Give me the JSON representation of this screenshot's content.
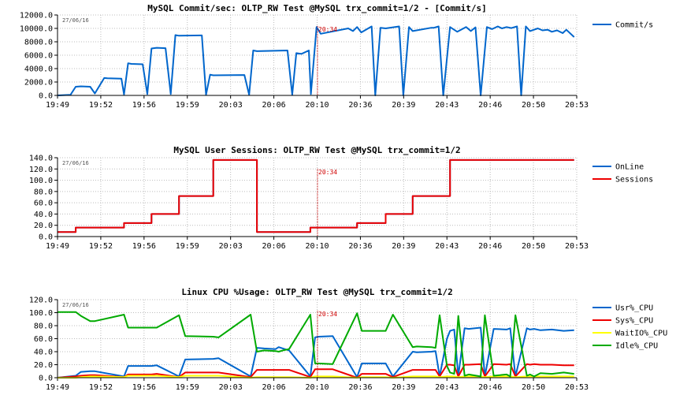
{
  "chart_data": [
    {
      "type": "line",
      "title": "MySQL Commit/sec: OLTP_RW Test @MySQL trx_commit=1/2 - [Commit/s]",
      "date_label": "27/06/16",
      "marker_label": "20:34",
      "x_tick_labels": [
        "19:49",
        "19:52",
        "19:56",
        "19:59",
        "20:03",
        "20:06",
        "20:10",
        "20:36",
        "20:39",
        "20:43",
        "20:46",
        "20:50",
        "20:53"
      ],
      "y_tick_labels": [
        "0.0",
        "2000.0",
        "4000.0",
        "6000.0",
        "8000.0",
        "10000.0",
        "12000.0"
      ],
      "ylim": [
        0,
        12000
      ],
      "grid": true,
      "legend_position": "right",
      "x": [
        0,
        2.5,
        3.5,
        4.5,
        6.3,
        7.2,
        9,
        9.6,
        12.3,
        12.8,
        13.6,
        14.2,
        16.4,
        17.3,
        18.1,
        19.1,
        20.8,
        21.8,
        22.7,
        23.4,
        27.8,
        28.6,
        29.4,
        30,
        36,
        36.9,
        37.7,
        38.4,
        44.3,
        45.2,
        46,
        47,
        48.4,
        48.8,
        49.9,
        50.7,
        56,
        56.9,
        57.7,
        58.5,
        60.5,
        61.2,
        62.2,
        63.2,
        65.8,
        66.6,
        67.7,
        68.4,
        72,
        72.5,
        73.4,
        74.3,
        75.6,
        77,
        78.7,
        79.6,
        80.5,
        81.5,
        82.7,
        83.7,
        84.8,
        85.6,
        86.5,
        87.4,
        88.5,
        89.3,
        90.2,
        91,
        92.5,
        93.4,
        94.4,
        95.2,
        96.2,
        97.3,
        98,
        99.5
      ],
      "series": [
        {
          "name": "Commit/s",
          "color": "#0066cc",
          "values": [
            0,
            100,
            1300,
            1350,
            1300,
            300,
            2600,
            2550,
            2500,
            150,
            4800,
            4700,
            4650,
            200,
            7000,
            7100,
            7050,
            200,
            9000,
            8900,
            8950,
            100,
            3100,
            3000,
            3050,
            100,
            6700,
            6600,
            6700,
            100,
            6300,
            6200,
            6700,
            200,
            10200,
            9200,
            10000,
            9600,
            10200,
            9400,
            10300,
            0,
            10100,
            10000,
            10300,
            0,
            10200,
            9600,
            10100,
            10100,
            10300,
            0,
            10200,
            9500,
            10200,
            9600,
            10150,
            0,
            10200,
            9900,
            10300,
            10000,
            10200,
            10050,
            10300,
            0,
            10300,
            9600,
            10000,
            9700,
            9800,
            9500,
            9700,
            9300,
            9800,
            8700
          ]
        }
      ]
    },
    {
      "type": "line",
      "title": "MySQL User Sessions: OLTP_RW Test @MySQL trx_commit=1/2",
      "date_label": "27/06/16",
      "marker_label": "20:34",
      "x_tick_labels": [
        "19:49",
        "19:52",
        "19:56",
        "19:59",
        "20:03",
        "20:06",
        "20:10",
        "20:36",
        "20:39",
        "20:43",
        "20:46",
        "20:50",
        "20:53"
      ],
      "y_tick_labels": [
        "0.0",
        "20.0",
        "40.0",
        "60.0",
        "80.0",
        "100.0",
        "120.0",
        "140.0"
      ],
      "ylim": [
        0,
        140
      ],
      "grid": true,
      "legend_position": "right",
      "x": [
        0,
        3.5,
        3.5,
        12.8,
        12.8,
        18.1,
        18.1,
        23.4,
        23.4,
        30,
        30,
        38.4,
        38.4,
        48.7,
        48.7,
        50.2,
        50.2,
        57.7,
        57.7,
        63.2,
        63.2,
        68.4,
        68.4,
        75.6,
        75.6,
        78.7,
        78.7,
        81.5,
        81.5,
        91,
        91,
        99.5
      ],
      "series": [
        {
          "name": "OnLine",
          "color": "#0066cc",
          "values": [
            8,
            8,
            16,
            16,
            24,
            24,
            40,
            40,
            72,
            72,
            136,
            136,
            8,
            8,
            16,
            16,
            16,
            16,
            24,
            24,
            40,
            40,
            72,
            72,
            136,
            136,
            136,
            136,
            136,
            136,
            136,
            136
          ]
        },
        {
          "name": "Sessions",
          "color": "#ee0000",
          "values": [
            8,
            8,
            16,
            16,
            24,
            24,
            40,
            40,
            72,
            72,
            136,
            136,
            8,
            8,
            16,
            16,
            16,
            16,
            24,
            24,
            40,
            40,
            72,
            72,
            136,
            136,
            136,
            136,
            136,
            136,
            136,
            136
          ]
        }
      ]
    },
    {
      "type": "line",
      "title": "Linux CPU %Usage: OLTP_RW Test @MySQL trx_commit=1/2",
      "date_label": "27/06/16",
      "marker_label": "20:34",
      "x_tick_labels": [
        "19:49",
        "19:52",
        "19:56",
        "19:59",
        "20:03",
        "20:06",
        "20:10",
        "20:36",
        "20:39",
        "20:43",
        "20:46",
        "20:50",
        "20:53"
      ],
      "y_tick_labels": [
        "0.0",
        "20.0",
        "40.0",
        "60.0",
        "80.0",
        "100.0",
        "120.0"
      ],
      "ylim": [
        0,
        120
      ],
      "grid": true,
      "legend_position": "right",
      "x": [
        0,
        3.5,
        4.5,
        6.3,
        7.2,
        12.8,
        13.6,
        18.1,
        19.1,
        23.4,
        24.6,
        30,
        31,
        37.2,
        38.4,
        39.8,
        42,
        42.6,
        43.4,
        44.6,
        48.7,
        49.6,
        50.2,
        53,
        57.7,
        58.6,
        63.2,
        64.6,
        68.4,
        69.2,
        72,
        72.8,
        73.6,
        75,
        75.6,
        76.4,
        77.2,
        78.4,
        79.2,
        81.5,
        82.3,
        84,
        86.5,
        87.2,
        88.2,
        90.4,
        91,
        91.8,
        93,
        95.2,
        97.5,
        99.5
      ],
      "series": [
        {
          "name": "Usr%_CPU",
          "color": "#0066cc",
          "values": [
            0,
            3,
            9,
            10,
            10,
            2,
            18,
            18,
            19,
            2,
            28,
            29,
            30,
            2,
            46,
            45,
            44,
            47,
            45,
            42,
            2,
            62,
            63,
            64,
            1,
            22,
            22,
            2,
            40,
            39,
            40,
            41,
            2,
            60,
            72,
            74,
            3,
            76,
            75,
            77,
            2,
            75,
            74,
            76,
            2,
            76,
            74,
            75,
            73,
            74,
            72,
            73
          ]
        },
        {
          "name": "Sys%_CPU",
          "color": "#ee0000",
          "values": [
            0,
            2,
            3,
            4,
            4,
            1,
            5,
            5,
            6,
            1,
            8,
            8,
            8,
            1,
            12,
            12,
            12,
            12,
            12,
            12,
            1,
            13,
            13,
            13,
            0,
            6,
            6,
            1,
            12,
            12,
            12,
            12,
            2,
            20,
            20,
            19,
            2,
            20,
            20,
            21,
            2,
            21,
            20,
            21,
            2,
            21,
            20,
            21,
            20,
            20,
            19,
            19
          ]
        },
        {
          "name": "WaitIO%_CPU",
          "color": "#ffff00",
          "values": [
            0,
            0,
            1,
            2,
            2,
            1,
            3,
            3,
            3,
            1,
            3,
            3,
            3,
            0,
            1,
            1,
            1,
            1,
            1,
            1,
            0,
            2,
            2,
            2,
            0,
            1,
            1,
            0,
            2,
            2,
            2,
            2,
            1,
            2,
            2,
            2,
            1,
            2,
            2,
            2,
            1,
            2,
            2,
            2,
            1,
            2,
            2,
            2,
            2,
            2,
            2,
            2
          ]
        },
        {
          "name": "Idle%_CPU",
          "color": "#00aa00",
          "values": [
            101,
            101,
            95,
            87,
            87,
            97,
            77,
            77,
            77,
            96,
            64,
            63,
            62,
            97,
            40,
            42,
            41,
            40,
            42,
            44,
            97,
            22,
            22,
            21,
            99,
            72,
            72,
            97,
            47,
            48,
            47,
            46,
            96,
            18,
            8,
            6,
            95,
            3,
            5,
            2,
            96,
            3,
            5,
            2,
            96,
            3,
            5,
            2,
            7,
            6,
            8,
            6
          ]
        }
      ]
    }
  ]
}
